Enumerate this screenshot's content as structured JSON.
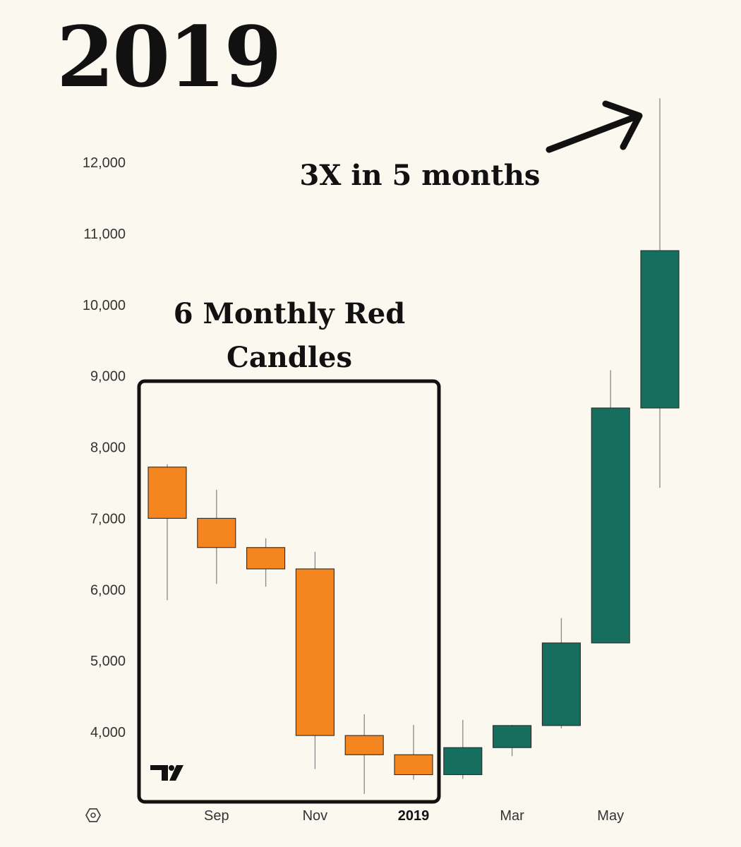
{
  "header": {
    "title": "2019"
  },
  "annotations": {
    "box_label_line1": "6 Monthly Red",
    "box_label_line2": "Candles",
    "arrow_label": "3X in 5 months"
  },
  "icons": {
    "settings": "hexagon-settings-icon",
    "logo": "tradingview-logo"
  },
  "logo_text": "TV",
  "colors": {
    "down": "#f5861f",
    "up": "#166e5e",
    "background": "#faf8ef"
  },
  "chart_data": {
    "type": "candlestick",
    "title": "",
    "xlabel": "",
    "ylabel": "",
    "ylim": [
      2800,
      12800
    ],
    "yticks": [
      4000,
      5000,
      6000,
      7000,
      8000,
      9000,
      10000,
      11000,
      12000
    ],
    "ytick_labels": [
      "4,000",
      "5,000",
      "6,000",
      "7,000",
      "8,000",
      "9,000",
      "10,000",
      "11,000",
      "12,000"
    ],
    "xtick_labels": [
      {
        "label": "Sep",
        "index": 1,
        "bold": false
      },
      {
        "label": "Nov",
        "index": 3,
        "bold": false
      },
      {
        "label": "2019",
        "index": 5,
        "bold": true
      },
      {
        "label": "Mar",
        "index": 7,
        "bold": false
      },
      {
        "label": "May",
        "index": 9,
        "bold": false
      }
    ],
    "candles": [
      {
        "month": "Aug 2018",
        "open": 7720,
        "high": 7760,
        "low": 5850,
        "close": 7000
      },
      {
        "month": "Sep 2018",
        "open": 7000,
        "high": 7400,
        "low": 6080,
        "close": 6590
      },
      {
        "month": "Oct 2018",
        "open": 6590,
        "high": 6720,
        "low": 6040,
        "close": 6290
      },
      {
        "month": "Nov 2018",
        "open": 6290,
        "high": 6530,
        "low": 3480,
        "close": 3950
      },
      {
        "month": "Dec 2018",
        "open": 3950,
        "high": 4250,
        "low": 3130,
        "close": 3680
      },
      {
        "month": "Jan 2019",
        "open": 3680,
        "high": 4100,
        "low": 3330,
        "close": 3400
      },
      {
        "month": "Feb 2019",
        "open": 3400,
        "high": 4170,
        "low": 3340,
        "close": 3780
      },
      {
        "month": "Mar 2019",
        "open": 3780,
        "high": 4100,
        "low": 3660,
        "close": 4090
      },
      {
        "month": "Apr 2019",
        "open": 4090,
        "high": 5600,
        "low": 4050,
        "close": 5250
      },
      {
        "month": "May 2019",
        "open": 5250,
        "high": 9080,
        "low": 5250,
        "close": 8550
      },
      {
        "month": "Jun 2019",
        "open": 8550,
        "high": 12900,
        "low": 7430,
        "close": 10760
      }
    ],
    "grid": false,
    "legend": "none"
  }
}
